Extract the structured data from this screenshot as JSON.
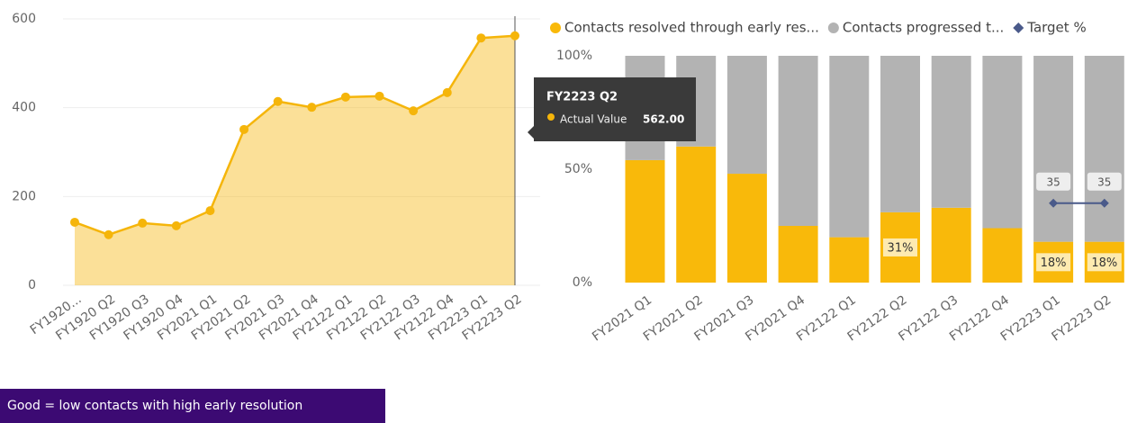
{
  "chart_data": [
    {
      "type": "area",
      "categories": [
        "FY1920...",
        "FY1920 Q2",
        "FY1920 Q3",
        "FY1920 Q4",
        "FY2021 Q1",
        "FY2021 Q2",
        "FY2021 Q3",
        "FY2021 Q4",
        "FY2122 Q1",
        "FY2122 Q2",
        "FY2122 Q3",
        "FY2122 Q4",
        "FY2223 Q1",
        "FY2223 Q2"
      ],
      "values": [
        142,
        114,
        140,
        134,
        168,
        351,
        414,
        401,
        424,
        426,
        393,
        434,
        557,
        562
      ],
      "color": "#f5b50a",
      "ylim": [
        0,
        600
      ],
      "yticks": [
        0,
        200,
        400,
        600
      ],
      "grid": true
    },
    {
      "type": "stacked_bar_percent",
      "categories": [
        "FY2021 Q1",
        "FY2021 Q2",
        "FY2021 Q3",
        "FY2021 Q4",
        "FY2122 Q1",
        "FY2122 Q2",
        "FY2122 Q3",
        "FY2122 Q4",
        "FY2223 Q1",
        "FY2223 Q2"
      ],
      "series": [
        {
          "name": "Contacts resolved through early res...",
          "color": "#f9b90a",
          "values": [
            54,
            60,
            48,
            25,
            20,
            31,
            33,
            24,
            18,
            18
          ],
          "value_labels": [
            null,
            null,
            null,
            null,
            null,
            "31%",
            null,
            null,
            "18%",
            "18%"
          ]
        },
        {
          "name": "Contacts progressed t...",
          "color": "#b3b3b3",
          "values": [
            46,
            40,
            52,
            75,
            80,
            69,
            67,
            76,
            82,
            82
          ]
        },
        {
          "name": "Target %",
          "color": "#4a5a8a",
          "type": "line",
          "values": [
            null,
            null,
            null,
            null,
            null,
            null,
            null,
            null,
            35,
            35
          ]
        }
      ],
      "ylim": [
        0,
        100
      ],
      "yticks": [
        {
          "value": 0,
          "label": "0%"
        },
        {
          "value": 50,
          "label": "50%"
        },
        {
          "value": 100,
          "label": "100%"
        }
      ],
      "grid": false,
      "legend": "top"
    }
  ],
  "tooltip": {
    "title": "FY2223 Q2",
    "label": "Actual Value",
    "value": "562.00"
  },
  "note": "Good = low contacts with high early resolution"
}
